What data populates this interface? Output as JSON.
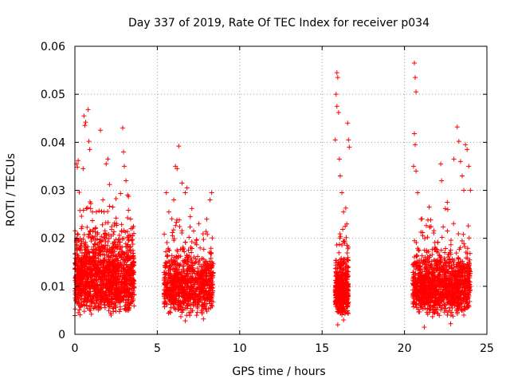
{
  "chart_data": {
    "type": "scatter",
    "title": "Day 337 of 2019, Rate Of TEC Index for receiver p034",
    "xlabel": "GPS time / hours",
    "ylabel": "ROTI / TECUs",
    "xlim": [
      0,
      25
    ],
    "ylim": [
      0,
      0.06
    ],
    "xticks": [
      "0",
      "5",
      "10",
      "15",
      "20",
      "25"
    ],
    "yticks": [
      "0",
      "0.01",
      "0.02",
      "0.03",
      "0.04",
      "0.05",
      "0.06"
    ],
    "grid": true,
    "marker": "+",
    "color": "#ff0000",
    "series": [
      {
        "points": [
          [
            0.1,
            0.0355
          ],
          [
            0.15,
            0.0348
          ],
          [
            0.2,
            0.0362
          ],
          [
            0.3,
            0.0258
          ],
          [
            0.4,
            0.0246
          ],
          [
            0.55,
            0.0455
          ],
          [
            0.6,
            0.0435
          ],
          [
            0.65,
            0.0442
          ],
          [
            0.8,
            0.0468
          ],
          [
            0.85,
            0.0402
          ],
          [
            0.9,
            0.0385
          ],
          [
            0.5,
            0.0345
          ],
          [
            0.95,
            0.0262
          ],
          [
            1.1,
            0.0218
          ],
          [
            1.3,
            0.0255
          ],
          [
            1.55,
            0.0425
          ],
          [
            1.7,
            0.028
          ],
          [
            1.9,
            0.0355
          ],
          [
            2.0,
            0.0365
          ],
          [
            2.1,
            0.0312
          ],
          [
            2.3,
            0.0265
          ],
          [
            2.5,
            0.0242
          ],
          [
            2.9,
            0.043
          ],
          [
            2.95,
            0.038
          ],
          [
            3.0,
            0.035
          ],
          [
            3.1,
            0.032
          ],
          [
            3.2,
            0.029
          ],
          [
            3.4,
            0.022
          ],
          [
            3.5,
            0.0205
          ],
          [
            0.2,
            0.0045
          ],
          [
            1.0,
            0.0042
          ],
          [
            2.2,
            0.004
          ],
          [
            3.3,
            0.0055
          ],
          [
            5.55,
            0.0295
          ],
          [
            5.7,
            0.0255
          ],
          [
            6.0,
            0.028
          ],
          [
            6.1,
            0.035
          ],
          [
            6.2,
            0.0345
          ],
          [
            6.3,
            0.0392
          ],
          [
            6.5,
            0.0315
          ],
          [
            6.7,
            0.0295
          ],
          [
            6.8,
            0.0305
          ],
          [
            7.0,
            0.0245
          ],
          [
            7.3,
            0.019
          ],
          [
            7.6,
            0.018
          ],
          [
            8.0,
            0.024
          ],
          [
            8.3,
            0.0295
          ],
          [
            8.2,
            0.028
          ],
          [
            5.8,
            0.0045
          ],
          [
            6.7,
            0.0028
          ],
          [
            7.8,
            0.0032
          ],
          [
            15.9,
            0.0545
          ],
          [
            15.95,
            0.0535
          ],
          [
            15.85,
            0.05
          ],
          [
            15.9,
            0.0475
          ],
          [
            16.0,
            0.0462
          ],
          [
            15.8,
            0.0405
          ],
          [
            16.05,
            0.0365
          ],
          [
            16.1,
            0.033
          ],
          [
            16.2,
            0.0295
          ],
          [
            16.3,
            0.0255
          ],
          [
            16.4,
            0.0225
          ],
          [
            16.55,
            0.044
          ],
          [
            16.6,
            0.0405
          ],
          [
            16.65,
            0.039
          ],
          [
            16.5,
            0.023
          ],
          [
            15.95,
            0.002
          ],
          [
            16.3,
            0.003
          ],
          [
            20.6,
            0.0565
          ],
          [
            20.65,
            0.0535
          ],
          [
            20.7,
            0.0505
          ],
          [
            20.6,
            0.0418
          ],
          [
            20.65,
            0.0395
          ],
          [
            20.55,
            0.035
          ],
          [
            20.7,
            0.034
          ],
          [
            20.8,
            0.0295
          ],
          [
            21.0,
            0.024
          ],
          [
            21.5,
            0.0265
          ],
          [
            22.2,
            0.0355
          ],
          [
            22.25,
            0.032
          ],
          [
            22.6,
            0.0275
          ],
          [
            23.0,
            0.0365
          ],
          [
            23.2,
            0.0432
          ],
          [
            23.3,
            0.0402
          ],
          [
            23.4,
            0.036
          ],
          [
            23.5,
            0.033
          ],
          [
            23.6,
            0.03
          ],
          [
            23.7,
            0.0395
          ],
          [
            23.8,
            0.0385
          ],
          [
            23.9,
            0.035
          ],
          [
            24.0,
            0.03
          ],
          [
            21.2,
            0.0015
          ],
          [
            22.8,
            0.0022
          ],
          [
            23.6,
            0.004
          ]
        ]
      }
    ]
  }
}
